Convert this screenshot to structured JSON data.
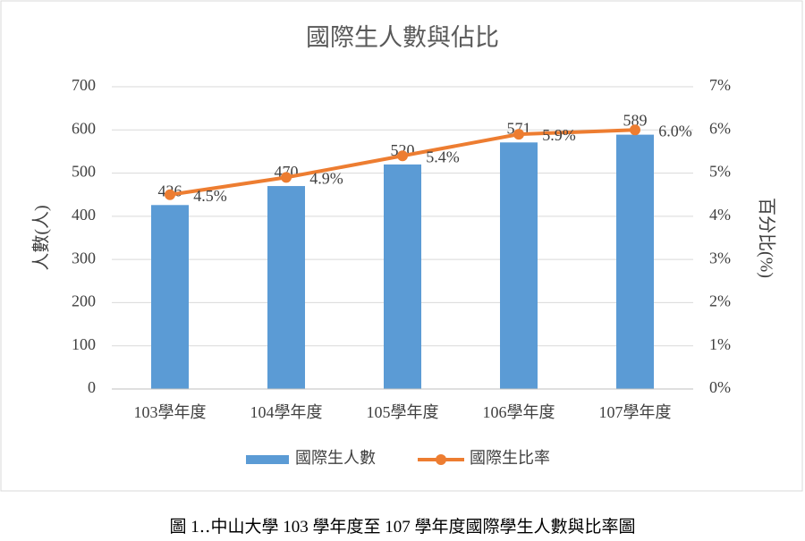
{
  "chart_data": {
    "type": "bar",
    "title": "國際生人數與佔比",
    "y_label": "人數(人)",
    "y2_label": "百分比(%)",
    "categories": [
      "103學年度",
      "104學年度",
      "105學年度",
      "106學年度",
      "107學年度"
    ],
    "series": [
      {
        "name": "國際生人數",
        "type": "bar",
        "color": "#5b9bd5",
        "values": [
          426,
          470,
          520,
          571,
          589
        ]
      },
      {
        "name": "國際生比率",
        "type": "line",
        "axis": "y2",
        "color": "#ed7d31",
        "values": [
          4.5,
          4.9,
          5.4,
          5.9,
          6.0
        ],
        "value_labels": [
          "4.5%",
          "4.9%",
          "5.4%",
          "5.9%",
          "6.0%"
        ]
      }
    ],
    "ylim": [
      0,
      700
    ],
    "yticks": [
      0,
      100,
      200,
      300,
      400,
      500,
      600,
      700
    ],
    "y2lim": [
      0,
      7
    ],
    "y2ticks": [
      {
        "value": 0,
        "label": "0%"
      },
      {
        "value": 1,
        "label": "1%"
      },
      {
        "value": 2,
        "label": "2%"
      },
      {
        "value": 3,
        "label": "3%"
      },
      {
        "value": 4,
        "label": "4%"
      },
      {
        "value": 5,
        "label": "5%"
      },
      {
        "value": 6,
        "label": "6%"
      },
      {
        "value": 7,
        "label": "7%"
      }
    ],
    "grid": true,
    "legend": "bottom"
  },
  "caption": "圖 1‥中山大學 103 學年度至 107 學年度國際學生人數與比率圖"
}
